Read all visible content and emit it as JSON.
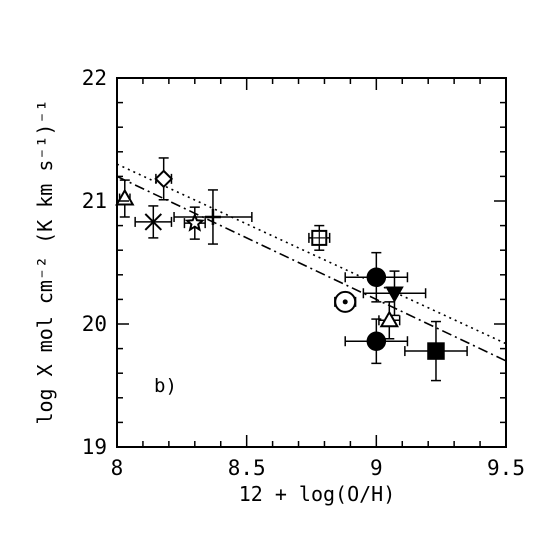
{
  "chart_data": {
    "type": "scatter",
    "title": "",
    "panel_label": "b)",
    "xlabel": "12 + log(O/H)",
    "ylabel": "log X mol cm⁻² (K km s⁻¹)⁻¹",
    "xlim": [
      8,
      9.5
    ],
    "ylim": [
      19,
      22
    ],
    "xticks": [
      "8",
      "8.5",
      "9",
      "9.5"
    ],
    "yticks": [
      "19",
      "20",
      "21",
      "22"
    ],
    "grid": false,
    "points": [
      {
        "marker": "open-triangle",
        "x": 8.03,
        "y": 21.02,
        "xerr": 0.02,
        "yerr": 0.15
      },
      {
        "marker": "open-diamond",
        "x": 8.18,
        "y": 21.18,
        "xerr": 0.03,
        "yerr": 0.17
      },
      {
        "marker": "cross-x",
        "x": 8.14,
        "y": 20.83,
        "xerr": 0.07,
        "yerr": 0.13
      },
      {
        "marker": "open-star",
        "x": 8.3,
        "y": 20.82,
        "xerr": 0.04,
        "yerr": 0.13
      },
      {
        "marker": "plus",
        "x": 8.37,
        "y": 20.87,
        "xerr": 0.15,
        "yerr": 0.22
      },
      {
        "marker": "open-square-hatched",
        "x": 8.78,
        "y": 20.7,
        "xerr": 0.04,
        "yerr": 0.1
      },
      {
        "marker": "open-circle-dot",
        "x": 8.88,
        "y": 20.18,
        "xerr": 0.04,
        "yerr": 0.04
      },
      {
        "marker": "filled-circle",
        "x": 9.0,
        "y": 20.38,
        "xerr": 0.12,
        "yerr": 0.2
      },
      {
        "marker": "filled-triangle-down",
        "x": 9.07,
        "y": 20.25,
        "xerr": 0.12,
        "yerr": 0.18
      },
      {
        "marker": "open-triangle",
        "x": 9.05,
        "y": 20.03,
        "xerr": 0.04,
        "yerr": 0.15
      },
      {
        "marker": "filled-circle",
        "x": 9.0,
        "y": 19.86,
        "xerr": 0.12,
        "yerr": 0.18
      },
      {
        "marker": "filled-square",
        "x": 9.23,
        "y": 19.78,
        "xerr": 0.12,
        "yerr": 0.24
      }
    ],
    "fit_lines": [
      {
        "style": "dotted",
        "x": [
          8.0,
          9.5
        ],
        "y": [
          21.3,
          19.84
        ]
      },
      {
        "style": "dash-dot",
        "x": [
          8.0,
          9.5
        ],
        "y": [
          21.2,
          19.7
        ]
      }
    ]
  }
}
